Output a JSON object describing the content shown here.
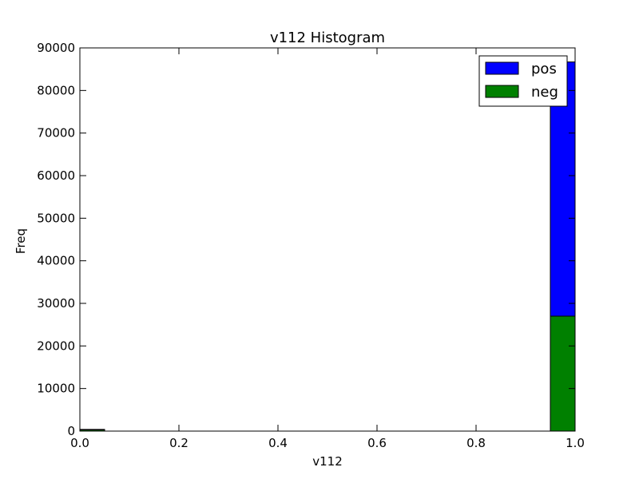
{
  "chart_data": {
    "type": "bar",
    "subtype": "stacked-histogram",
    "title": "v112 Histogram",
    "xlabel": "v112",
    "ylabel": "Freq",
    "xlim": [
      0.0,
      1.0
    ],
    "ylim": [
      0,
      90000
    ],
    "x_ticks": [
      "0.0",
      "0.2",
      "0.4",
      "0.6",
      "0.8",
      "1.0"
    ],
    "y_ticks": [
      "0",
      "10000",
      "20000",
      "30000",
      "40000",
      "50000",
      "60000",
      "70000",
      "80000",
      "90000"
    ],
    "grid": false,
    "legend_position": "top-right",
    "bins": [
      {
        "x_start": 0.0,
        "x_end": 0.05
      },
      {
        "x_start": 0.95,
        "x_end": 1.0
      }
    ],
    "series": [
      {
        "name": "neg",
        "color": "#008000",
        "values": [
          300,
          27000
        ]
      },
      {
        "name": "pos",
        "color": "#0000ff",
        "values": [
          100,
          59700
        ]
      }
    ]
  }
}
